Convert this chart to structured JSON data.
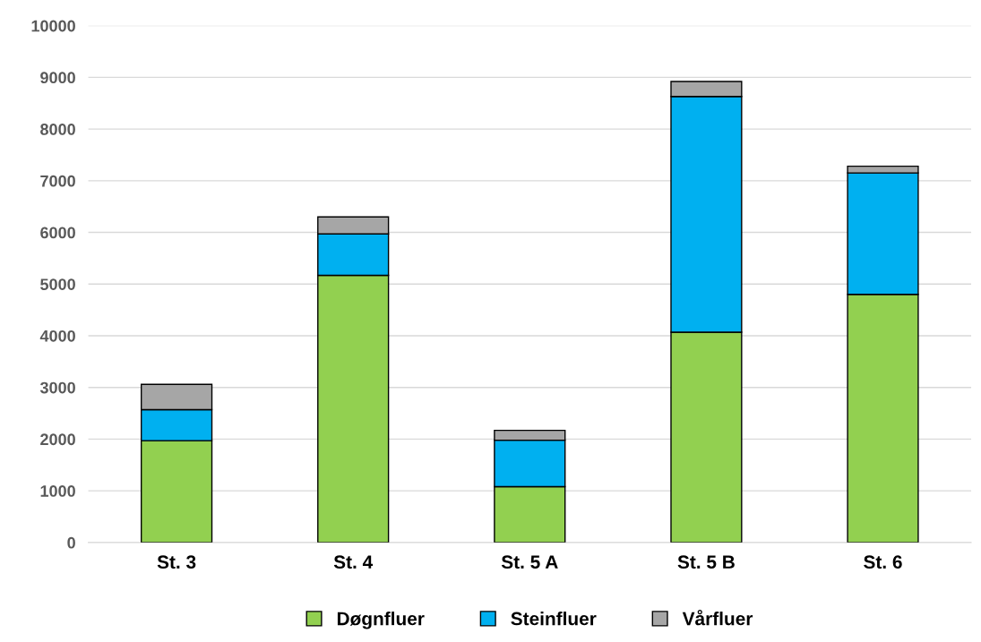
{
  "chart_data": {
    "type": "bar",
    "stacked": true,
    "categories": [
      "St. 3",
      "St. 4",
      "St. 5 A",
      "St. 5 B",
      "St. 6"
    ],
    "series": [
      {
        "name": "Døgnfluer",
        "color": "#92d050",
        "values": [
          1970,
          5170,
          1080,
          4070,
          4800
        ]
      },
      {
        "name": "Steinfluer",
        "color": "#00b0f0",
        "values": [
          600,
          800,
          900,
          4560,
          2350
        ]
      },
      {
        "name": "Vårfluer",
        "color": "#a6a6a6",
        "values": [
          490,
          330,
          190,
          290,
          130
        ]
      }
    ],
    "ylim": [
      0,
      10000
    ],
    "yticks": [
      0,
      1000,
      2000,
      3000,
      4000,
      5000,
      6000,
      7000,
      8000,
      9000,
      10000
    ],
    "grid": "y",
    "legend": "bottom"
  }
}
